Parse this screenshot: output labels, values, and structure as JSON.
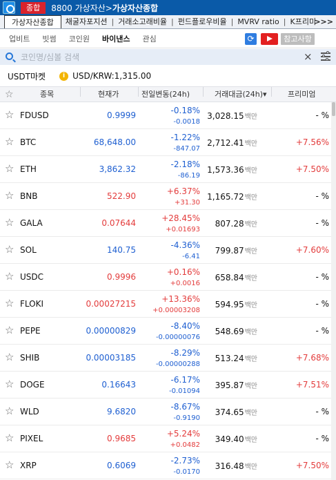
{
  "titlebar": {
    "badge": "종합",
    "path": "8800 가상자산>",
    "title": "가상자산종합"
  },
  "tabs": [
    "가상자산종합",
    "채굴자포지션",
    "거래소고래비율",
    "펀드플로우비율",
    "MVRV ratio",
    "K프리미"
  ],
  "tabs_more": ">>>",
  "subnav": [
    "업비트",
    "빗썸",
    "코인원",
    "바이낸스",
    "관심"
  ],
  "subnav_active": "바이낸스",
  "notice_button": "참고사항",
  "search": {
    "placeholder": "코인명/심볼 검색",
    "clear": "×"
  },
  "market": {
    "name": "USDT마켓",
    "info": "i",
    "rate": "USD/KRW:1,315.00"
  },
  "headers": {
    "symbol": "종목",
    "price": "현재가",
    "change": "전일변동(24h)",
    "volume": "거래대금(24h)▾",
    "premium": "프리미엄"
  },
  "star_glyph": "☆",
  "volume_unit": "백만",
  "colors": {
    "up": "#e33b3b",
    "down": "#1e5fd1",
    "titlebar": "#0a5aa8",
    "badge": "#d9232c"
  },
  "rows": [
    {
      "symbol": "FDUSD",
      "price": "0.9999",
      "pct": "-0.18%",
      "chg": "-0.0018",
      "volume": "3,028.15",
      "premium": "- %",
      "dir": "down",
      "prem_dir": "none"
    },
    {
      "symbol": "BTC",
      "price": "68,648.00",
      "pct": "-1.22%",
      "chg": "-847.07",
      "volume": "2,712.41",
      "premium": "+7.56%",
      "dir": "down",
      "prem_dir": "up"
    },
    {
      "symbol": "ETH",
      "price": "3,862.32",
      "pct": "-2.18%",
      "chg": "-86.19",
      "volume": "1,573.36",
      "premium": "+7.50%",
      "dir": "down",
      "prem_dir": "up"
    },
    {
      "symbol": "BNB",
      "price": "522.90",
      "pct": "+6.37%",
      "chg": "+31.30",
      "volume": "1,165.72",
      "premium": "- %",
      "dir": "up",
      "prem_dir": "none"
    },
    {
      "symbol": "GALA",
      "price": "0.07644",
      "pct": "+28.45%",
      "chg": "+0.01693",
      "volume": "807.28",
      "premium": "- %",
      "dir": "up",
      "prem_dir": "none"
    },
    {
      "symbol": "SOL",
      "price": "140.75",
      "pct": "-4.36%",
      "chg": "-6.41",
      "volume": "799.87",
      "premium": "+7.60%",
      "dir": "down",
      "prem_dir": "up"
    },
    {
      "symbol": "USDC",
      "price": "0.9996",
      "pct": "+0.16%",
      "chg": "+0.0016",
      "volume": "658.84",
      "premium": "- %",
      "dir": "up",
      "prem_dir": "none"
    },
    {
      "symbol": "FLOKI",
      "price": "0.00027215",
      "pct": "+13.36%",
      "chg": "+0.00003208",
      "volume": "594.95",
      "premium": "- %",
      "dir": "up",
      "prem_dir": "none"
    },
    {
      "symbol": "PEPE",
      "price": "0.00000829",
      "pct": "-8.40%",
      "chg": "-0.00000076",
      "volume": "548.69",
      "premium": "- %",
      "dir": "down",
      "prem_dir": "none"
    },
    {
      "symbol": "SHIB",
      "price": "0.00003185",
      "pct": "-8.29%",
      "chg": "-0.00000288",
      "volume": "513.24",
      "premium": "+7.68%",
      "dir": "down",
      "prem_dir": "up"
    },
    {
      "symbol": "DOGE",
      "price": "0.16643",
      "pct": "-6.17%",
      "chg": "-0.01094",
      "volume": "395.87",
      "premium": "+7.51%",
      "dir": "down",
      "prem_dir": "up"
    },
    {
      "symbol": "WLD",
      "price": "9.6820",
      "pct": "-8.67%",
      "chg": "-0.9190",
      "volume": "374.65",
      "premium": "- %",
      "dir": "down",
      "prem_dir": "none"
    },
    {
      "symbol": "PIXEL",
      "price": "0.9685",
      "pct": "+5.24%",
      "chg": "+0.0482",
      "volume": "349.40",
      "premium": "- %",
      "dir": "up",
      "prem_dir": "none"
    },
    {
      "symbol": "XRP",
      "price": "0.6069",
      "pct": "-2.73%",
      "chg": "-0.0170",
      "volume": "316.48",
      "premium": "+7.50%",
      "dir": "down",
      "prem_dir": "up"
    }
  ]
}
